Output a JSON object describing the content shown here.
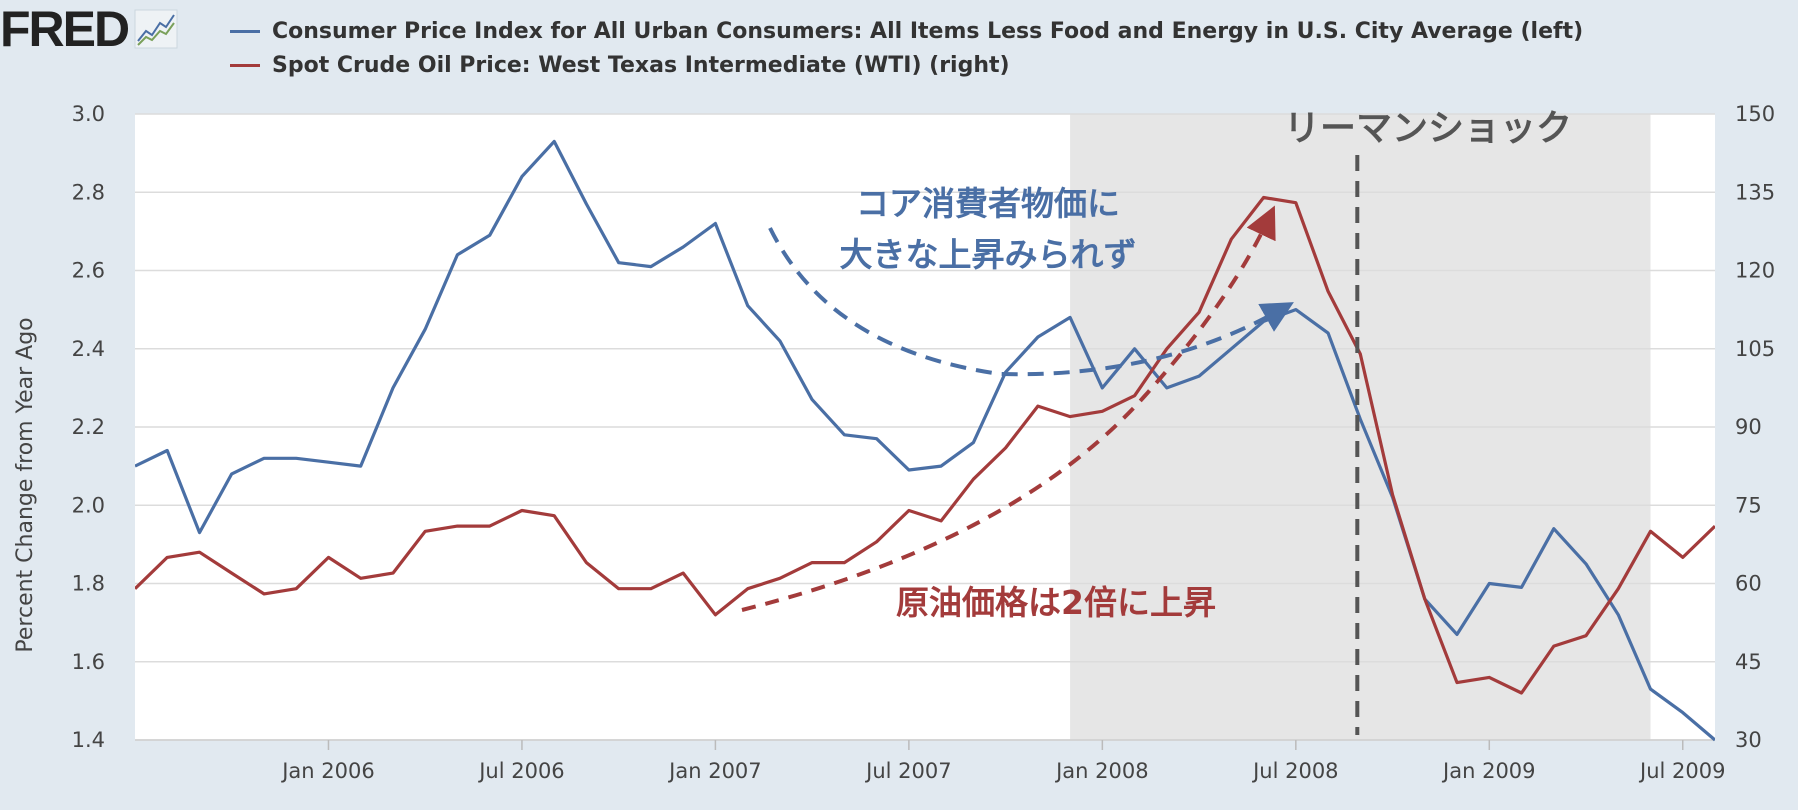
{
  "header": {
    "logo_text": "FRED",
    "logo_mark": "trend-chart-icon"
  },
  "colors": {
    "cpi": "#4a6fa5",
    "wti": "#a33b3b",
    "recession": "#e6e6e6",
    "background": "#e1e9f0",
    "annotation_cpi": "#4a6fa5",
    "annotation_wti": "#a33b3b",
    "marker": "#555555"
  },
  "chart_data": {
    "type": "line",
    "title": "",
    "xlabel": "",
    "ylabel": "Percent Change from Year Ago",
    "ylim": [
      1.4,
      3.0
    ],
    "y2lim": [
      30,
      150
    ],
    "yticks": [
      "1.4",
      "1.6",
      "1.8",
      "2.0",
      "2.2",
      "2.4",
      "2.6",
      "2.8",
      "3.0"
    ],
    "y2ticks": [
      "30",
      "45",
      "60",
      "75",
      "90",
      "105",
      "120",
      "135",
      "150"
    ],
    "xticks": [
      "Jan 2006",
      "Jul 2006",
      "Jan 2007",
      "Jul 2007",
      "Jan 2008",
      "Jul 2008",
      "Jan 2009",
      "Jul 2009"
    ],
    "x_start": "2005-07",
    "x_end": "2009-08",
    "grid": true,
    "recession": {
      "start": "2007-12",
      "end": "2009-06"
    },
    "series": [
      {
        "name": "Consumer Price Index for All Urban Consumers: All Items Less Food and Energy in U.S. City Average (left)",
        "axis": "left",
        "x": [
          "2005-07",
          "2005-08",
          "2005-09",
          "2005-10",
          "2005-11",
          "2005-12",
          "2006-01",
          "2006-02",
          "2006-03",
          "2006-04",
          "2006-05",
          "2006-06",
          "2006-07",
          "2006-08",
          "2006-09",
          "2006-10",
          "2006-11",
          "2006-12",
          "2007-01",
          "2007-02",
          "2007-03",
          "2007-04",
          "2007-05",
          "2007-06",
          "2007-07",
          "2007-08",
          "2007-09",
          "2007-10",
          "2007-11",
          "2007-12",
          "2008-01",
          "2008-02",
          "2008-03",
          "2008-04",
          "2008-05",
          "2008-06",
          "2008-07",
          "2008-08",
          "2008-09",
          "2008-10",
          "2008-11",
          "2008-12",
          "2009-01",
          "2009-02",
          "2009-03",
          "2009-04",
          "2009-05",
          "2009-06",
          "2009-07",
          "2009-08"
        ],
        "values": [
          2.1,
          2.14,
          1.93,
          2.08,
          2.12,
          2.12,
          2.11,
          2.1,
          2.3,
          2.45,
          2.64,
          2.69,
          2.84,
          2.93,
          2.77,
          2.62,
          2.61,
          2.66,
          2.72,
          2.51,
          2.42,
          2.27,
          2.18,
          2.17,
          2.09,
          2.1,
          2.16,
          2.34,
          2.43,
          2.48,
          2.3,
          2.4,
          2.3,
          2.33,
          2.4,
          2.47,
          2.5,
          2.44,
          2.22,
          2.02,
          1.76,
          1.67,
          1.8,
          1.79,
          1.94,
          1.85,
          1.72,
          1.53,
          1.47,
          1.4
        ]
      },
      {
        "name": "Spot Crude Oil Price: West Texas Intermediate (WTI) (right)",
        "axis": "right",
        "x": [
          "2005-07",
          "2005-08",
          "2005-09",
          "2005-10",
          "2005-11",
          "2005-12",
          "2006-01",
          "2006-02",
          "2006-03",
          "2006-04",
          "2006-05",
          "2006-06",
          "2006-07",
          "2006-08",
          "2006-09",
          "2006-10",
          "2006-11",
          "2006-12",
          "2007-01",
          "2007-02",
          "2007-03",
          "2007-04",
          "2007-05",
          "2007-06",
          "2007-07",
          "2007-08",
          "2007-09",
          "2007-10",
          "2007-11",
          "2007-12",
          "2008-01",
          "2008-02",
          "2008-03",
          "2008-04",
          "2008-05",
          "2008-06",
          "2008-07",
          "2008-08",
          "2008-09",
          "2008-10",
          "2008-11",
          "2008-12",
          "2009-01",
          "2009-02",
          "2009-03",
          "2009-04",
          "2009-05",
          "2009-06",
          "2009-07",
          "2009-08"
        ],
        "values": [
          59,
          65,
          66,
          62,
          58,
          59,
          65,
          61,
          62,
          70,
          71,
          71,
          74,
          73,
          64,
          59,
          59,
          62,
          54,
          59,
          61,
          64,
          64,
          68,
          74,
          72,
          80,
          86,
          94,
          92,
          93,
          96,
          105,
          112,
          126,
          134,
          133,
          116,
          104,
          77,
          57,
          41,
          42,
          39,
          48,
          50,
          59,
          70,
          65,
          71
        ]
      }
    ],
    "annotations": {
      "event": "リーマンショック",
      "event_date": "2008-09",
      "cpi_note_line1": "コア消費者物価に",
      "cpi_note_line2": "大きな上昇みられず",
      "wti_note": "原油価格は2倍に上昇"
    }
  }
}
